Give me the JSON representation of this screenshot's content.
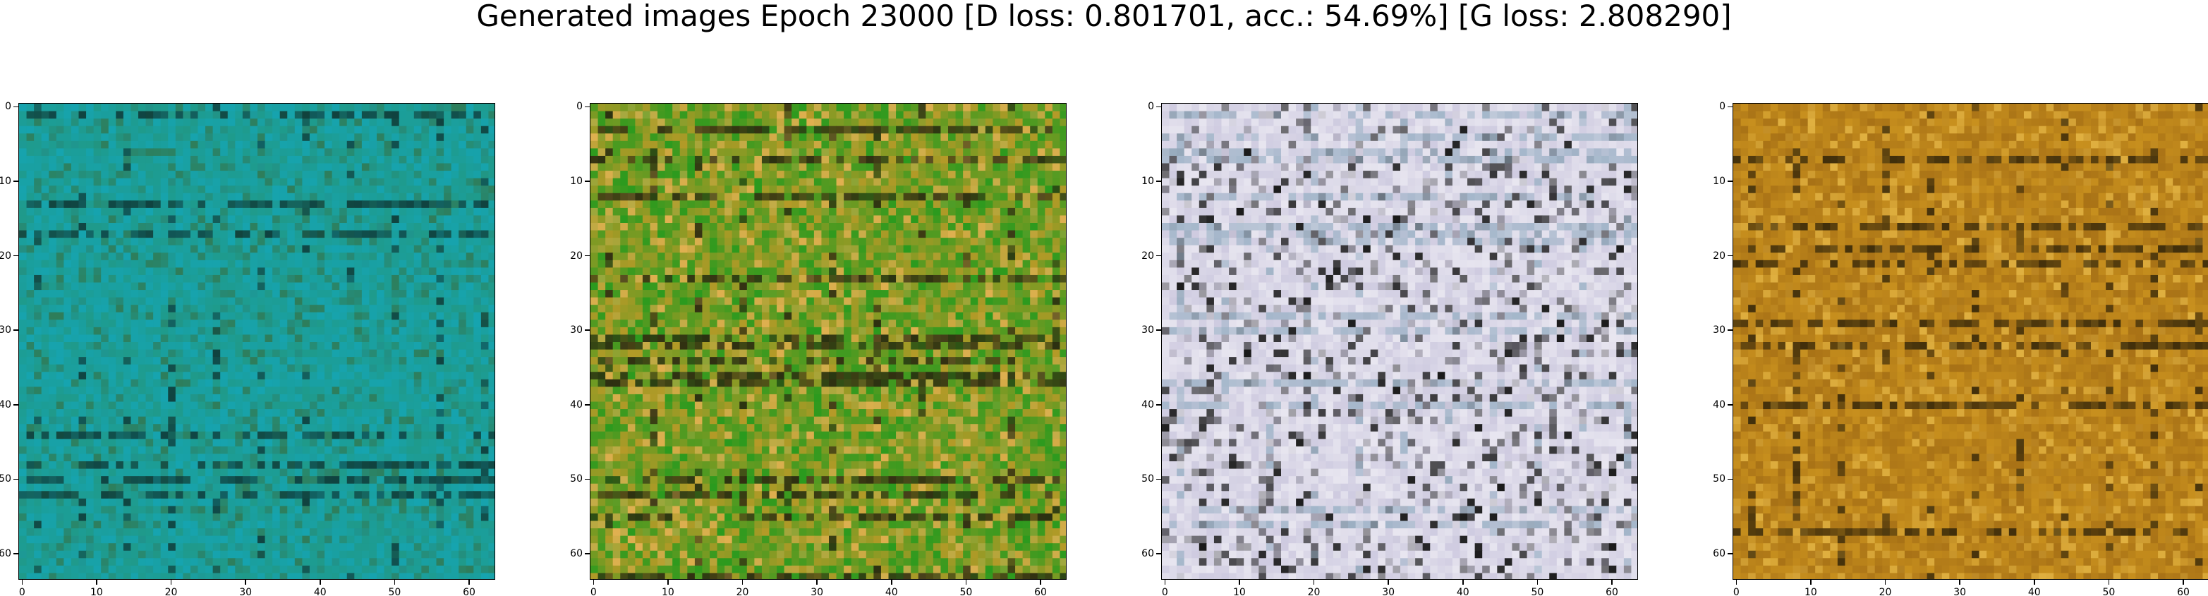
{
  "figure": {
    "title": "Generated images Epoch 23000 [D loss: 0.801701, acc.: 54.69%] [G loss: 2.808290]"
  },
  "chart_data": [
    {
      "type": "heatmap",
      "title": "",
      "xlim": [
        0,
        63
      ],
      "ylim": [
        63,
        0
      ],
      "x_ticks": [
        0,
        10,
        20,
        30,
        40,
        50,
        60
      ],
      "y_ticks": [
        0,
        10,
        20,
        30,
        40,
        50,
        60
      ],
      "x_tick_labels": [
        "0",
        "10",
        "20",
        "30",
        "40",
        "50",
        "60"
      ],
      "y_tick_labels": [
        "0",
        "10",
        "20",
        "30",
        "40",
        "50",
        "60"
      ],
      "dominant_colors": [
        "#1f9a8a",
        "#14a6b8",
        "#2e7d5a",
        "#0f3d3a"
      ]
    },
    {
      "type": "heatmap",
      "title": "",
      "xlim": [
        0,
        63
      ],
      "ylim": [
        63,
        0
      ],
      "x_ticks": [
        0,
        10,
        20,
        30,
        40,
        50,
        60
      ],
      "y_ticks": [
        0,
        10,
        20,
        30,
        40,
        50,
        60
      ],
      "x_tick_labels": [
        "0",
        "10",
        "20",
        "30",
        "40",
        "50",
        "60"
      ],
      "y_tick_labels": [
        "0",
        "10",
        "20",
        "30",
        "40",
        "50",
        "60"
      ],
      "dominant_colors": [
        "#2a9a1e",
        "#d89a2a",
        "#e0b050",
        "#2a2a10"
      ]
    },
    {
      "type": "heatmap",
      "title": "",
      "xlim": [
        0,
        63
      ],
      "ylim": [
        63,
        0
      ],
      "x_ticks": [
        0,
        10,
        20,
        30,
        40,
        50,
        60
      ],
      "y_ticks": [
        0,
        10,
        20,
        30,
        40,
        50,
        60
      ],
      "x_tick_labels": [
        "0",
        "10",
        "20",
        "30",
        "40",
        "50",
        "60"
      ],
      "y_tick_labels": [
        "0",
        "10",
        "20",
        "30",
        "40",
        "50",
        "60"
      ],
      "dominant_colors": [
        "#e8e6f0",
        "#c8c4dc",
        "#1a1a1a",
        "#a0b4c8"
      ]
    },
    {
      "type": "heatmap",
      "title": "",
      "xlim": [
        0,
        63
      ],
      "ylim": [
        63,
        0
      ],
      "x_ticks": [
        0,
        10,
        20,
        30,
        40,
        50,
        60
      ],
      "y_ticks": [
        0,
        10,
        20,
        30,
        40,
        50,
        60
      ],
      "x_tick_labels": [
        "0",
        "10",
        "20",
        "30",
        "40",
        "50",
        "60"
      ],
      "y_tick_labels": [
        "0",
        "10",
        "20",
        "30",
        "40",
        "50",
        "60"
      ],
      "dominant_colors": [
        "#c8901e",
        "#a06a14",
        "#e0b040",
        "#3a2a0a"
      ]
    }
  ]
}
